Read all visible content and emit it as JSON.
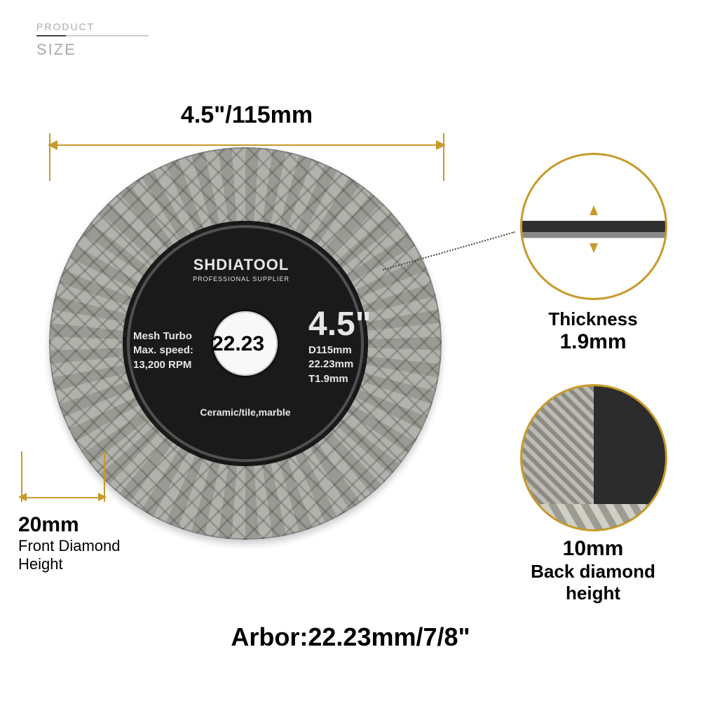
{
  "header": {
    "category": "PRODUCT",
    "section": "SIZE"
  },
  "diameter": {
    "label": "4.5\"/115mm"
  },
  "disc": {
    "brand": "SHDIATOOL",
    "tagline": "PROFESSIONAL SUPPLIER",
    "left_spec_1": "Mesh Turbo",
    "left_spec_2": "Max. speed:",
    "left_spec_3": "13,200 RPM",
    "right_big": "4.5\"",
    "right_1": "D115mm",
    "right_2": "22.23mm",
    "right_3": "T1.9mm",
    "bottom": "Ceramic/tile,marble",
    "arbor_center": "22.23"
  },
  "front_height": {
    "value": "20mm",
    "label": "Front Diamond Height"
  },
  "thickness": {
    "title": "Thickness",
    "value": "1.9mm"
  },
  "back_height": {
    "value": "10mm",
    "label": "Back diamond height"
  },
  "arbor": {
    "text": "Arbor:22.23mm/7/8\""
  },
  "colors": {
    "accent": "#c79a2b",
    "disc_label": "#1a1a1a"
  }
}
